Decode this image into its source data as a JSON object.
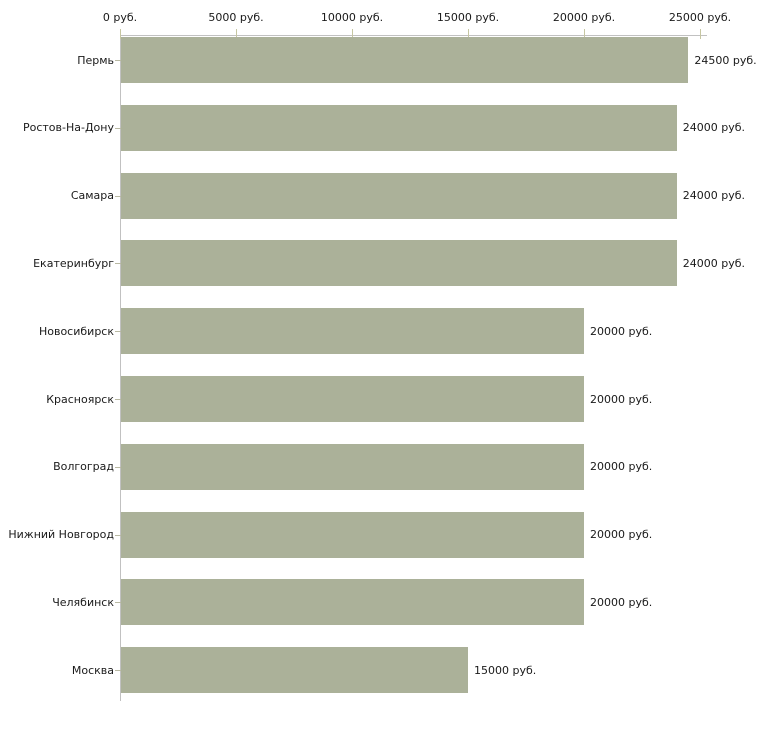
{
  "chart_data": {
    "type": "bar",
    "orientation": "horizontal",
    "title": "",
    "xlabel": "",
    "ylabel": "",
    "categories": [
      "Пермь",
      "Ростов-На-Дону",
      "Самара",
      "Екатеринбург",
      "Новосибирск",
      "Красноярск",
      "Волгоград",
      "Нижний Новгород",
      "Челябинск",
      "Москва"
    ],
    "values": [
      24500,
      24000,
      24000,
      24000,
      20000,
      20000,
      20000,
      20000,
      20000,
      15000
    ],
    "value_labels": [
      "24500 руб.",
      "24000 руб.",
      "24000 руб.",
      "24000 руб.",
      "20000 руб.",
      "20000 руб.",
      "20000 руб.",
      "20000 руб.",
      "20000 руб.",
      "15000 руб."
    ],
    "x_axis": {
      "position": "top",
      "lim": [
        0,
        25000
      ],
      "tick_values": [
        0,
        5000,
        10000,
        15000,
        20000,
        25000
      ],
      "tick_labels": [
        "0 руб.",
        "5000 руб.",
        "10000 руб.",
        "15000 руб.",
        "20000 руб.",
        "25000 руб."
      ]
    },
    "grid": false,
    "legend": null,
    "colors": {
      "bar": "#abb199",
      "axis_line": "#c1c1c1",
      "axis_tick": "#c6c6a2",
      "category_tick": "#b9b9a3",
      "text": "#1a1a1a",
      "background": "#ffffff"
    }
  }
}
